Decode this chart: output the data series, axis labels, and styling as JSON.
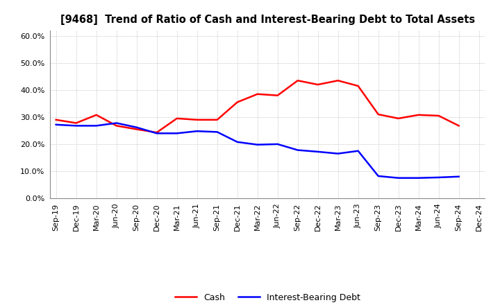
{
  "title": "[9468]  Trend of Ratio of Cash and Interest-Bearing Debt to Total Assets",
  "x_labels": [
    "Sep-19",
    "Dec-19",
    "Mar-20",
    "Jun-20",
    "Sep-20",
    "Dec-20",
    "Mar-21",
    "Jun-21",
    "Sep-21",
    "Dec-21",
    "Mar-22",
    "Jun-22",
    "Sep-22",
    "Dec-22",
    "Mar-23",
    "Jun-23",
    "Sep-23",
    "Dec-23",
    "Mar-24",
    "Jun-24",
    "Sep-24",
    "Dec-24"
  ],
  "cash": [
    0.29,
    0.278,
    0.308,
    0.268,
    0.255,
    0.243,
    0.295,
    0.29,
    0.29,
    0.355,
    0.385,
    0.38,
    0.435,
    0.42,
    0.435,
    0.415,
    0.31,
    0.295,
    0.308,
    0.305,
    0.268,
    null
  ],
  "debt": [
    0.272,
    0.268,
    0.268,
    0.278,
    0.262,
    0.24,
    0.24,
    0.248,
    0.245,
    0.208,
    0.198,
    0.2,
    0.178,
    0.172,
    0.165,
    0.175,
    0.082,
    0.075,
    0.075,
    0.077,
    0.08,
    null
  ],
  "cash_color": "#ff0000",
  "debt_color": "#0000ff",
  "background_color": "#ffffff",
  "grid_color": "#b0b0b0",
  "ylim": [
    0.0,
    0.62
  ],
  "yticks": [
    0.0,
    0.1,
    0.2,
    0.3,
    0.4,
    0.5,
    0.6
  ],
  "title_fontsize": 10.5,
  "tick_fontsize": 8,
  "legend_fontsize": 9
}
